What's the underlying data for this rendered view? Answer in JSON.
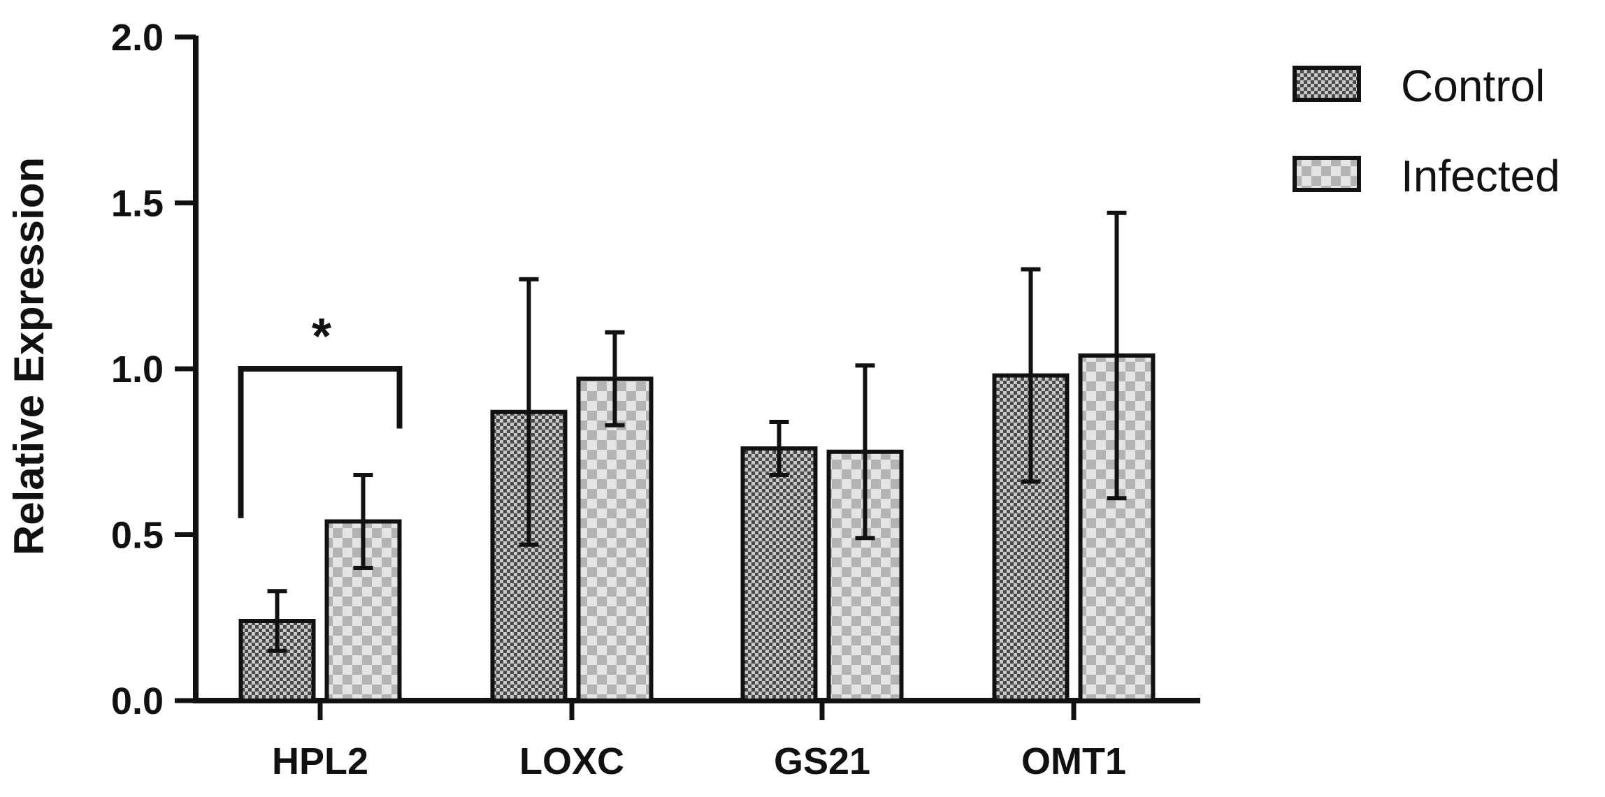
{
  "chart_data": {
    "type": "bar",
    "ylabel": "Relative Expression",
    "xlabel": "",
    "ylim": [
      0,
      2.0
    ],
    "yticks": [
      "0.0",
      "0.5",
      "1.0",
      "1.5",
      "2.0"
    ],
    "categories": [
      "HPL2",
      "LOXC",
      "GS21",
      "OMT1"
    ],
    "series": [
      {
        "name": "Control",
        "pattern": "fine-checker",
        "color_dark": "#4a4a4a",
        "color_light": "#c9c9c9",
        "values": [
          0.24,
          0.87,
          0.76,
          0.98
        ],
        "error": [
          0.09,
          0.4,
          0.08,
          0.32
        ]
      },
      {
        "name": "Infected",
        "pattern": "coarse-checker",
        "color_dark": "#b3b3b3",
        "color_light": "#e4e4e4",
        "values": [
          0.54,
          0.97,
          0.75,
          1.04
        ],
        "error": [
          0.14,
          0.14,
          0.26,
          0.43
        ]
      }
    ],
    "annotations": [
      {
        "text": "*",
        "category": "HPL2",
        "type": "significance-bracket"
      }
    ],
    "legend": "top-right",
    "grid": false
  }
}
